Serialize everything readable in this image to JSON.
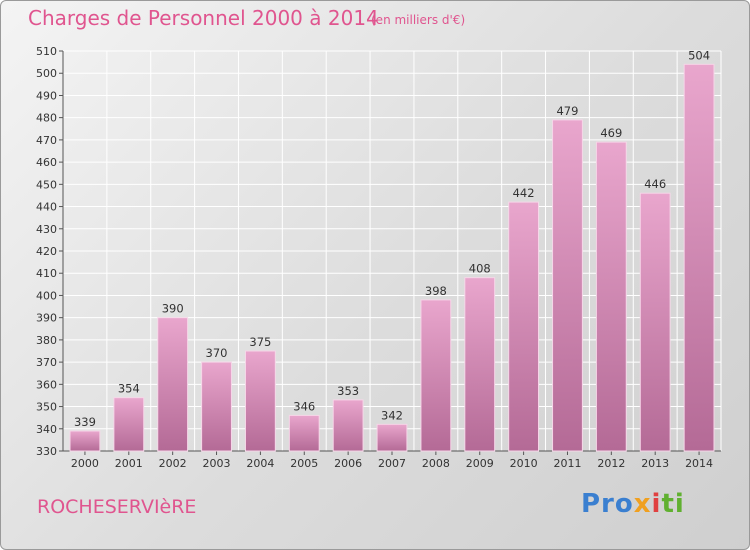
{
  "header": {
    "title": "Charges de Personnel 2000 à 2014",
    "subtitle": "(en milliers d'€)"
  },
  "footer": {
    "commune": "ROCHESERVIèRE",
    "logo_parts": [
      "Pro",
      "x",
      "i",
      "ti"
    ]
  },
  "colors": {
    "title": "#e0558f",
    "bar_top": "#e9a6cd",
    "bar_bottom": "#b46a96",
    "grid": "#ffffff",
    "axis": "#555555"
  },
  "chart_data": {
    "type": "bar",
    "title": "Charges de Personnel 2000 à 2014",
    "subtitle": "(en milliers d'€)",
    "xlabel": "",
    "ylabel": "",
    "categories": [
      "2000",
      "2001",
      "2002",
      "2003",
      "2004",
      "2005",
      "2006",
      "2007",
      "2008",
      "2009",
      "2010",
      "2011",
      "2012",
      "2013",
      "2014"
    ],
    "values": [
      339,
      354,
      390,
      370,
      375,
      346,
      353,
      342,
      398,
      408,
      442,
      479,
      469,
      446,
      504
    ],
    "ylim": [
      330,
      510
    ],
    "ytick_step": 10,
    "grid": true,
    "data_labels": true
  }
}
